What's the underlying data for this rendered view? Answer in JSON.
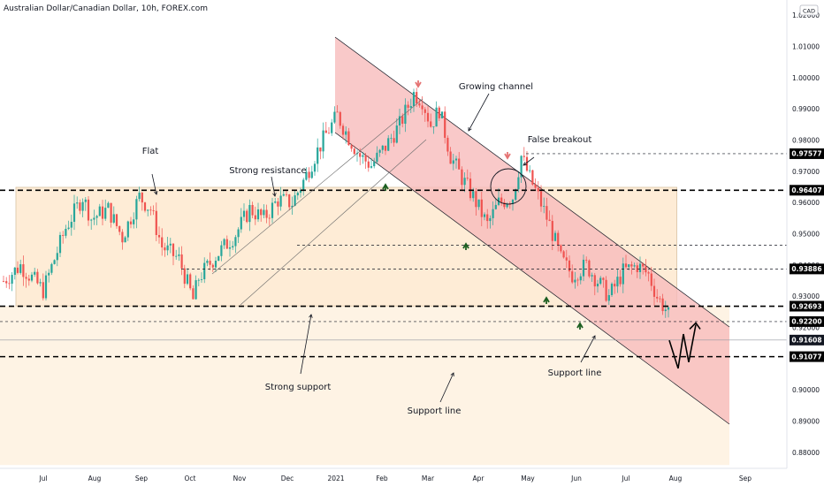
{
  "header": {
    "title": "Australian Dollar/Canadian Dollar, 10h, FOREX.com"
  },
  "currency_badge": "CAD",
  "colors": {
    "up": "#26a69a",
    "down": "#ef5350",
    "arrow_up": "#1b5e20",
    "arrow_down": "#e57373",
    "channel_fill": "#f8bbbb",
    "flat_fill": "#fde4c4",
    "label_bg": "#000000"
  },
  "chart_data": {
    "type": "candlestick",
    "title": "Australian Dollar/Canadian Dollar, 10h, FOREX.com",
    "xaxis": {
      "ticks": [
        "Jul",
        "Aug",
        "Sep",
        "Oct",
        "Nov",
        "Dec",
        "2021",
        "Feb",
        "Mar",
        "Apr",
        "May",
        "Jun",
        "Jul",
        "Aug",
        "Sep"
      ]
    },
    "yaxis": {
      "range": [
        0.875,
        1.025
      ],
      "ticks": [
        {
          "v": 1.02,
          "label": "1.02000"
        },
        {
          "v": 1.01,
          "label": "1.01000"
        },
        {
          "v": 1.0,
          "label": "1.00000"
        },
        {
          "v": 0.99,
          "label": "0.99000"
        },
        {
          "v": 0.98,
          "label": "0.98000"
        },
        {
          "v": 0.97,
          "label": "0.97000"
        },
        {
          "v": 0.96,
          "label": "0.96000"
        },
        {
          "v": 0.95,
          "label": "0.95000"
        },
        {
          "v": 0.94,
          "label": "0.94000"
        },
        {
          "v": 0.93,
          "label": "0.93000"
        },
        {
          "v": 0.92,
          "label": "0.92000"
        },
        {
          "v": 0.91,
          "label": "0.91000"
        },
        {
          "v": 0.9,
          "label": "0.90000"
        },
        {
          "v": 0.89,
          "label": "0.89000"
        },
        {
          "v": 0.88,
          "label": "0.88000"
        }
      ]
    },
    "price_levels": [
      {
        "v": 0.97577,
        "label": "0.97577",
        "style": "dashed-thin"
      },
      {
        "v": 0.96407,
        "label": "0.96407",
        "style": "dashed-thick"
      },
      {
        "v": 0.93886,
        "label": "0.93886",
        "style": "dashed-thin"
      },
      {
        "v": 0.92693,
        "label": "0.92693",
        "style": "dashed-thick"
      },
      {
        "v": 0.922,
        "label": "0.92200",
        "style": "dashed-thin"
      },
      {
        "v": 0.91608,
        "label": "0.91608",
        "style": "current"
      },
      {
        "v": 0.91077,
        "label": "0.91077",
        "style": "dashed-thick"
      }
    ],
    "extra_levels": [
      {
        "v": 0.9465,
        "style": "dashed-thin"
      }
    ],
    "series_path": [
      [
        0,
        0.935
      ],
      [
        6,
        0.94
      ],
      [
        14,
        0.932
      ],
      [
        22,
        0.952
      ],
      [
        28,
        0.962
      ],
      [
        31,
        0.955
      ],
      [
        37,
        0.958
      ],
      [
        42,
        0.949
      ],
      [
        48,
        0.962
      ],
      [
        52,
        0.958
      ],
      [
        56,
        0.946
      ],
      [
        62,
        0.942
      ],
      [
        67,
        0.929
      ],
      [
        69,
        0.936
      ],
      [
        75,
        0.943
      ],
      [
        82,
        0.95
      ],
      [
        87,
        0.958
      ],
      [
        92,
        0.955
      ],
      [
        97,
        0.961
      ],
      [
        102,
        0.96
      ],
      [
        106,
        0.967
      ],
      [
        110,
        0.975
      ],
      [
        114,
        0.982
      ],
      [
        118,
        0.988
      ],
      [
        122,
        0.981
      ],
      [
        126,
        0.975
      ],
      [
        130,
        0.972
      ],
      [
        135,
        0.978
      ],
      [
        140,
        0.985
      ],
      [
        145,
        0.995
      ],
      [
        148,
        0.993
      ],
      [
        151,
        0.985
      ],
      [
        154,
        0.99
      ],
      [
        158,
        0.975
      ],
      [
        162,
        0.968
      ],
      [
        166,
        0.962
      ],
      [
        171,
        0.953
      ],
      [
        175,
        0.96
      ],
      [
        180,
        0.962
      ],
      [
        183,
        0.975
      ],
      [
        186,
        0.968
      ],
      [
        189,
        0.962
      ],
      [
        193,
        0.953
      ],
      [
        197,
        0.942
      ],
      [
        201,
        0.937
      ],
      [
        206,
        0.94
      ],
      [
        210,
        0.935
      ],
      [
        214,
        0.93
      ],
      [
        219,
        0.938
      ],
      [
        224,
        0.94
      ],
      [
        228,
        0.937
      ],
      [
        231,
        0.93
      ],
      [
        234,
        0.926
      ],
      [
        236,
        0.922
      ]
    ],
    "zones": {
      "flat": {
        "t0": 0,
        "t1": 238,
        "v0": 0.927,
        "v1": 0.965,
        "label": "Flat"
      },
      "channel": {
        "upper": [
          [
            118,
            1.02
          ],
          [
            254,
            0.922
          ]
        ],
        "lower": [
          [
            118,
            0.986
          ],
          [
            254,
            0.89
          ]
        ],
        "label": "Growing channel"
      }
    },
    "annotations": [
      {
        "id": "flat",
        "text": "Flat"
      },
      {
        "id": "strong_resistance",
        "text": "Strong resistance"
      },
      {
        "id": "growing_channel",
        "text": "Growing channel"
      },
      {
        "id": "false_breakout",
        "text": "False breakout"
      },
      {
        "id": "strong_support",
        "text": "Strong support"
      },
      {
        "id": "support_line_1",
        "text": "Support line"
      },
      {
        "id": "support_line_2",
        "text": "Support line"
      }
    ],
    "forecast_path": [
      [
        0.916
      ],
      [
        0.907
      ],
      [
        0.918
      ],
      [
        0.909
      ],
      [
        0.921
      ]
    ]
  }
}
